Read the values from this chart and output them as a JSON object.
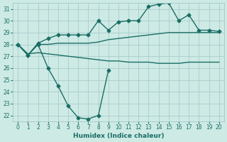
{
  "line1_x": [
    0,
    1,
    2,
    3,
    4,
    5,
    6,
    7,
    8,
    9
  ],
  "line1_y": [
    28,
    27.1,
    28.0,
    26.0,
    24.5,
    22.8,
    21.8,
    21.7,
    22.0,
    25.8
  ],
  "line2_x": [
    0,
    1,
    2,
    3,
    4,
    5,
    6,
    7,
    8,
    9,
    10,
    11,
    12,
    13,
    14,
    15,
    16,
    17,
    18,
    19,
    20
  ],
  "line2_y": [
    28,
    27.1,
    28.1,
    28.5,
    28.8,
    28.8,
    28.8,
    28.8,
    30.0,
    29.2,
    29.9,
    30.0,
    30.0,
    31.2,
    31.4,
    31.5,
    30.0,
    30.5,
    29.2,
    29.2,
    29.1
  ],
  "line3_x": [
    0,
    1,
    2,
    3,
    4,
    5,
    6,
    7,
    8,
    9,
    10,
    11,
    12,
    13,
    14,
    15,
    16,
    17,
    18,
    19,
    20
  ],
  "line3_y": [
    28,
    27.1,
    28.0,
    28.0,
    28.1,
    28.1,
    28.1,
    28.1,
    28.2,
    28.4,
    28.5,
    28.6,
    28.7,
    28.8,
    28.9,
    29.0,
    29.0,
    29.0,
    29.0,
    29.0,
    29.0
  ],
  "line4_x": [
    0,
    1,
    2,
    3,
    4,
    5,
    6,
    7,
    8,
    9,
    10,
    11,
    12,
    13,
    14,
    15,
    16,
    17,
    18,
    19,
    20
  ],
  "line4_y": [
    28,
    27.2,
    27.3,
    27.2,
    27.1,
    27.0,
    26.9,
    26.8,
    26.7,
    26.6,
    26.6,
    26.5,
    26.5,
    26.5,
    26.4,
    26.4,
    26.4,
    26.5,
    26.5,
    26.5,
    26.5
  ],
  "xlabel": "Humidex (Indice chaleur)",
  "xlim": [
    0,
    20
  ],
  "ylim": [
    21.5,
    31.5
  ],
  "yticks": [
    22,
    23,
    24,
    25,
    26,
    27,
    28,
    29,
    30,
    31
  ],
  "xticks": [
    0,
    1,
    2,
    3,
    4,
    5,
    6,
    7,
    8,
    9,
    10,
    11,
    12,
    13,
    14,
    15,
    16,
    17,
    18,
    19,
    20
  ],
  "bg_color": "#cdeae5",
  "grid_color": "#aacccc",
  "line_color": "#1a6e65"
}
